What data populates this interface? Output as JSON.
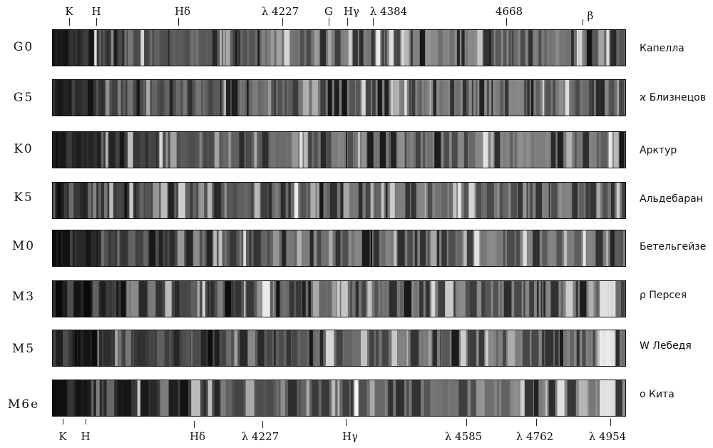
{
  "top_markers": [
    {
      "label": "K"
    },
    {
      "label": "H"
    },
    {
      "label": "Hδ"
    },
    {
      "label": "λ 4227"
    },
    {
      "label": "G"
    },
    {
      "label": "Hγ"
    },
    {
      "label": "λ 4384"
    },
    {
      "label": "4668"
    },
    {
      "label": "β"
    }
  ],
  "bottom_markers": [
    {
      "label": "K"
    },
    {
      "label": "H"
    },
    {
      "label": "Hδ"
    },
    {
      "label": "λ 4227"
    },
    {
      "label": "Hγ"
    },
    {
      "label": "λ 4585"
    },
    {
      "label": "λ 4762"
    },
    {
      "label": "λ 4954"
    }
  ],
  "spectra": [
    {
      "class": "G0",
      "star": "Капелла"
    },
    {
      "class": "G5",
      "star": "ϰ Близнецов"
    },
    {
      "class": "K0",
      "star": "Арктур"
    },
    {
      "class": "K5",
      "star": "Альдебаран"
    },
    {
      "class": "M0",
      "star": "Бетельгейзе"
    },
    {
      "class": "M3",
      "star": "ρ Персея"
    },
    {
      "class": "M5",
      "star": "W Лебедя"
    },
    {
      "class": "M6e",
      "star": "o Кита"
    }
  ]
}
